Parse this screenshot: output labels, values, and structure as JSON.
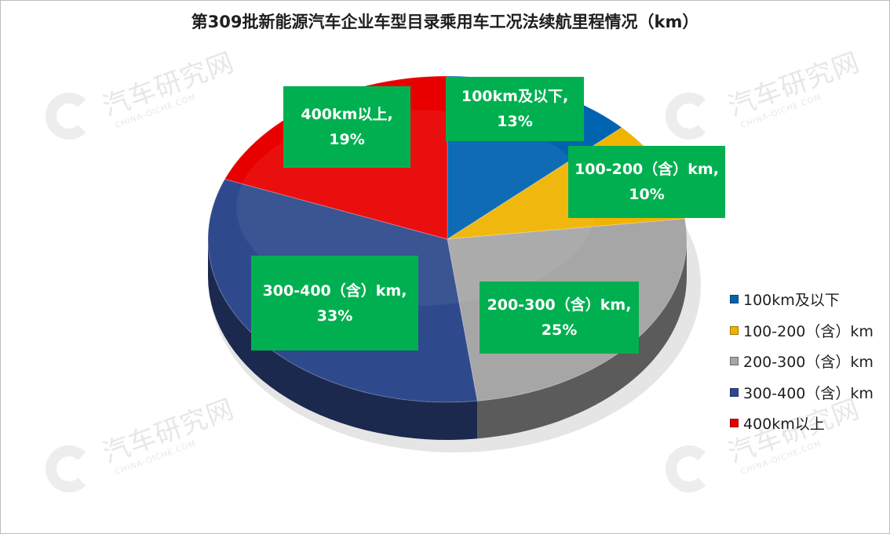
{
  "title": "第309批新能源汽车企业车型目录乘用车工况法续航里程情况（km）",
  "watermark": {
    "text": "汽车研究网",
    "sub": "CHINA-QICHE.COM"
  },
  "chart_data": {
    "type": "pie",
    "title": "第309批新能源汽车企业车型目录乘用车工况法续航里程情况（km）",
    "legend_position": "right",
    "slices": [
      {
        "name": "100km及以下",
        "value": 13,
        "color": "#0063b0",
        "label": "100km及以下,",
        "percent": "13%"
      },
      {
        "name": "100-200（含）km",
        "value": 10,
        "color": "#f0b400",
        "label": "100-200（含）km,",
        "percent": "10%"
      },
      {
        "name": "200-300（含）km",
        "value": 25,
        "color": "#a6a6a6",
        "label": "200-300（含）km,",
        "percent": "25%"
      },
      {
        "name": "300-400（含）km",
        "value": 33,
        "color": "#2f4a8c",
        "label": "300-400（含）km,",
        "percent": "33%"
      },
      {
        "name": "400km以上",
        "value": 19,
        "color": "#e80000",
        "label": "400km以上,",
        "percent": "19%"
      }
    ]
  }
}
